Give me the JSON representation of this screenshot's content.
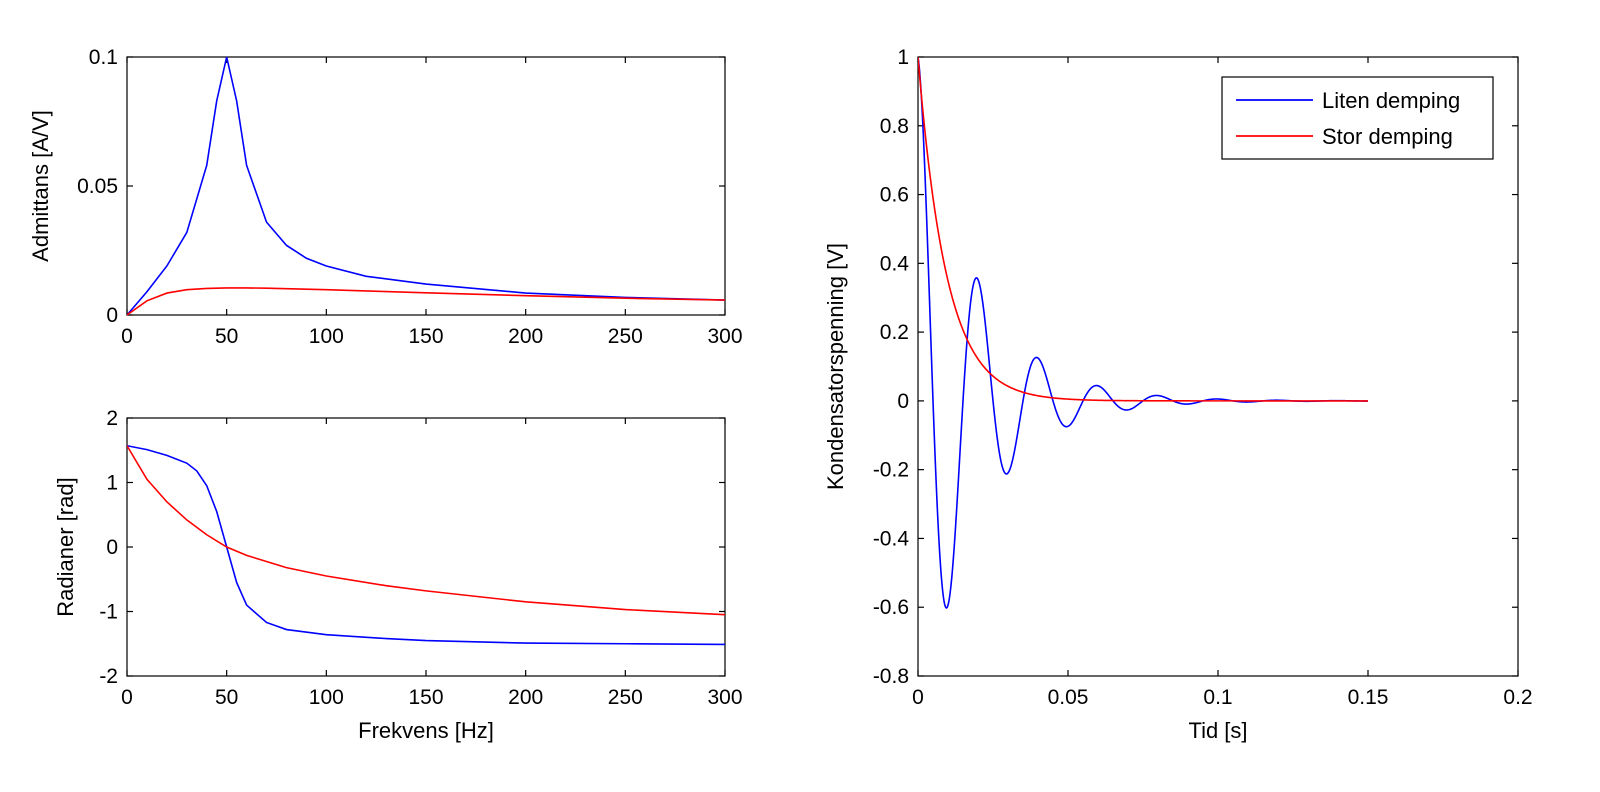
{
  "chart_data": [
    {
      "type": "line",
      "id": "admittance",
      "title": "",
      "xlabel": "",
      "ylabel": "Admittans [A/V]",
      "xlim": [
        0,
        300
      ],
      "ylim": [
        0,
        0.1
      ],
      "xticks": [
        0,
        50,
        100,
        150,
        200,
        250,
        300
      ],
      "yticks": [
        0,
        0.05,
        0.1
      ],
      "xtick_labels": [
        "0",
        "50",
        "100",
        "150",
        "200",
        "250",
        "300"
      ],
      "ytick_labels": [
        "0",
        "0.05",
        "0.1"
      ],
      "grid": false,
      "series": [
        {
          "name": "Liten demping",
          "color": "#0000ff",
          "x": [
            0,
            10,
            20,
            30,
            40,
            45,
            50,
            55,
            60,
            70,
            80,
            90,
            100,
            120,
            150,
            200,
            250,
            300
          ],
          "y": [
            0,
            0.009,
            0.019,
            0.032,
            0.058,
            0.083,
            0.1,
            0.083,
            0.058,
            0.036,
            0.027,
            0.022,
            0.019,
            0.015,
            0.012,
            0.0085,
            0.0068,
            0.0058
          ]
        },
        {
          "name": "Stor demping",
          "color": "#ff0000",
          "x": [
            0,
            10,
            20,
            30,
            40,
            50,
            60,
            70,
            80,
            100,
            130,
            150,
            200,
            250,
            300
          ],
          "y": [
            0,
            0.0055,
            0.0085,
            0.0098,
            0.0103,
            0.0105,
            0.0105,
            0.0104,
            0.0102,
            0.0098,
            0.0091,
            0.0086,
            0.0075,
            0.0065,
            0.0058
          ]
        }
      ]
    },
    {
      "type": "line",
      "id": "phase",
      "title": "",
      "xlabel": "Frekvens [Hz]",
      "ylabel": "Radianer [rad]",
      "xlim": [
        0,
        300
      ],
      "ylim": [
        -2,
        2
      ],
      "xticks": [
        0,
        50,
        100,
        150,
        200,
        250,
        300
      ],
      "yticks": [
        -2,
        -1,
        0,
        1,
        2
      ],
      "xtick_labels": [
        "0",
        "50",
        "100",
        "150",
        "200",
        "250",
        "300"
      ],
      "ytick_labels": [
        "-2",
        "-1",
        "0",
        "1",
        "2"
      ],
      "grid": false,
      "series": [
        {
          "name": "Liten demping",
          "color": "#0000ff",
          "x": [
            0,
            10,
            20,
            30,
            35,
            40,
            45,
            50,
            55,
            60,
            70,
            80,
            100,
            130,
            150,
            200,
            250,
            300
          ],
          "y": [
            1.57,
            1.51,
            1.42,
            1.3,
            1.18,
            0.95,
            0.55,
            0.0,
            -0.55,
            -0.9,
            -1.17,
            -1.28,
            -1.36,
            -1.42,
            -1.45,
            -1.49,
            -1.5,
            -1.51
          ]
        },
        {
          "name": "Stor demping",
          "color": "#ff0000",
          "x": [
            0,
            10,
            20,
            30,
            40,
            50,
            60,
            80,
            100,
            130,
            150,
            200,
            250,
            300
          ],
          "y": [
            1.57,
            1.05,
            0.7,
            0.42,
            0.19,
            0.0,
            -0.13,
            -0.32,
            -0.45,
            -0.6,
            -0.68,
            -0.85,
            -0.97,
            -1.05
          ]
        }
      ]
    },
    {
      "type": "line",
      "id": "step",
      "title": "",
      "xlabel": "Tid [s]",
      "ylabel": "Kondensatorspenning [V]",
      "xlim": [
        0,
        0.2
      ],
      "ylim": [
        -0.8,
        1
      ],
      "xticks": [
        0,
        0.05,
        0.1,
        0.15,
        0.2
      ],
      "yticks": [
        -0.8,
        -0.6,
        -0.4,
        -0.2,
        0,
        0.2,
        0.4,
        0.6,
        0.8,
        1
      ],
      "xtick_labels": [
        "0",
        "0.05",
        "0.1",
        "0.15",
        "0.2"
      ],
      "ytick_labels": [
        "-0.8",
        "-0.6",
        "-0.4",
        "-0.2",
        "0",
        "0.2",
        "0.4",
        "0.6",
        "0.8",
        "1"
      ],
      "grid": false,
      "legend": {
        "position": "top-right",
        "entries": [
          "Liten demping",
          "Stor demping"
        ]
      },
      "series": [
        {
          "name": "Liten demping",
          "color": "#0000ff",
          "model": "damped_cosine",
          "amplitude": 1,
          "decay_time_s": 0.0192,
          "period_s": 0.02,
          "x_range": [
            0,
            0.15
          ],
          "peaks": [
            {
              "x": 0,
              "y": 1
            },
            {
              "x": 0.01,
              "y": -0.6
            },
            {
              "x": 0.02,
              "y": 0.36
            },
            {
              "x": 0.03,
              "y": -0.22
            },
            {
              "x": 0.04,
              "y": 0.13
            },
            {
              "x": 0.05,
              "y": -0.08
            },
            {
              "x": 0.06,
              "y": 0.045
            },
            {
              "x": 0.07,
              "y": -0.027
            }
          ]
        },
        {
          "name": "Stor demping",
          "color": "#ff0000",
          "model": "exponential_decay",
          "amplitude": 1,
          "decay_time_s": 0.0095,
          "x_range": [
            0,
            0.15
          ]
        }
      ]
    }
  ]
}
